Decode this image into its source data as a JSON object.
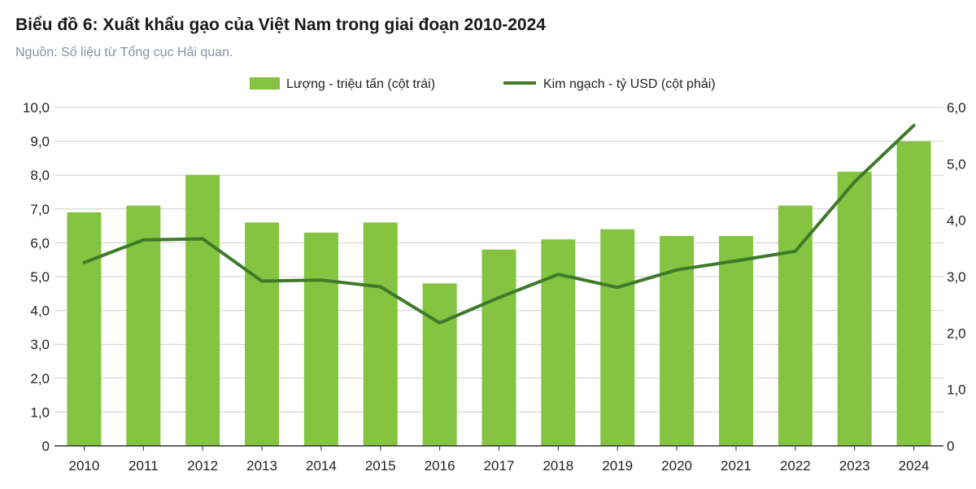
{
  "header": {
    "title": "Biểu đồ 6: Xuất khẩu gạo của Việt Nam trong giai đoạn 2010-2024",
    "source": "Nguồn: Số liệu từ Tổng cục Hải quan."
  },
  "colors": {
    "bar": "#84c440",
    "line": "#3e7a2a",
    "grid": "#cfcfcf"
  },
  "chart_data": {
    "type": "bar",
    "categories": [
      "2010",
      "2011",
      "2012",
      "2013",
      "2014",
      "2015",
      "2016",
      "2017",
      "2018",
      "2019",
      "2020",
      "2021",
      "2022",
      "2023",
      "2024"
    ],
    "series": [
      {
        "name": "Lượng - triệu tấn (cột trái)",
        "type": "bar",
        "axis": "left",
        "values": [
          6.9,
          7.1,
          8.0,
          6.6,
          6.3,
          6.6,
          4.8,
          5.8,
          6.1,
          6.4,
          6.2,
          6.2,
          7.1,
          8.1,
          9.0
        ]
      },
      {
        "name": "Kim ngạch - tỷ USD (cột phải)",
        "type": "line",
        "axis": "right",
        "values": [
          3.25,
          3.65,
          3.67,
          2.92,
          2.94,
          2.82,
          2.18,
          2.63,
          3.04,
          2.81,
          3.12,
          3.28,
          3.45,
          4.68,
          5.68
        ]
      }
    ],
    "y_left": {
      "lim": [
        0,
        10
      ],
      "ticks": [
        "0",
        "1,0",
        "2,0",
        "3,0",
        "4,0",
        "5,0",
        "6,0",
        "7,0",
        "8,0",
        "9,0",
        "10,0"
      ]
    },
    "y_right": {
      "lim": [
        0,
        6
      ],
      "ticks": [
        "0",
        "1,0",
        "2,0",
        "3,0",
        "4,0",
        "5,0",
        "6,0"
      ]
    },
    "grid": true,
    "legend_position": "top"
  }
}
